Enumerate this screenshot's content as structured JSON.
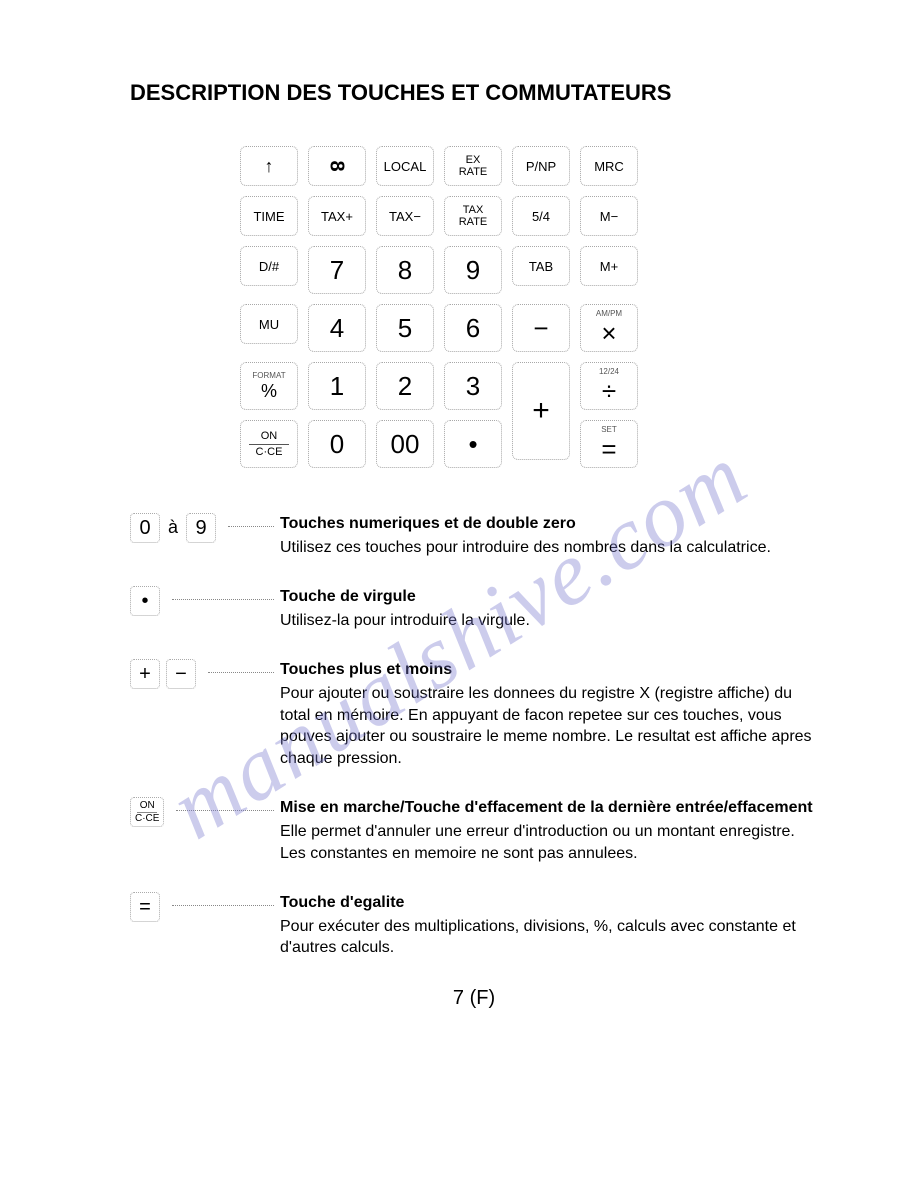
{
  "title": "DESCRIPTION DES TOUCHES ET COMMUTATEURS",
  "watermark": "manualshive.com",
  "page_number": "7 (F)",
  "keypad_rows": [
    [
      {
        "label": "↑",
        "cls": ""
      },
      {
        "label": "8",
        "cls": "",
        "rot": true
      },
      {
        "label": "LOCAL",
        "cls": "small"
      },
      {
        "top": "EX",
        "bot": "RATE",
        "cls": "xsmall",
        "stack": true
      },
      {
        "label": "P/NP",
        "cls": "small"
      },
      {
        "label": "MRC",
        "cls": "small"
      }
    ],
    [
      {
        "label": "TIME",
        "cls": "small"
      },
      {
        "label": "TAX+",
        "cls": "small"
      },
      {
        "label": "TAX−",
        "cls": "small"
      },
      {
        "top": "TAX",
        "bot": "RATE",
        "cls": "xsmall",
        "stack": true
      },
      {
        "label": "5/4",
        "cls": "small"
      },
      {
        "label": "M−",
        "cls": "small"
      }
    ],
    [
      {
        "label": "D/#",
        "cls": "small"
      },
      {
        "label": "7",
        "cls": "big"
      },
      {
        "label": "8",
        "cls": "big"
      },
      {
        "label": "9",
        "cls": "big"
      },
      {
        "label": "TAB",
        "cls": "small"
      },
      {
        "label": "M+",
        "cls": "small"
      }
    ],
    [
      {
        "label": "MU",
        "cls": "small"
      },
      {
        "label": "4",
        "cls": "big"
      },
      {
        "label": "5",
        "cls": "big"
      },
      {
        "label": "6",
        "cls": "big"
      },
      {
        "label": "−",
        "cls": "big"
      },
      {
        "sup": "AM/PM",
        "label": "×",
        "cls": "big"
      }
    ],
    [
      {
        "sup": "FORMAT",
        "label": "%",
        "cls": ""
      },
      {
        "label": "1",
        "cls": "big"
      },
      {
        "label": "2",
        "cls": "big"
      },
      {
        "label": "3",
        "cls": "big"
      },
      {
        "label": "+",
        "cls": "tall",
        "rowspan": 2
      },
      {
        "sup": "12/24",
        "label": "÷",
        "cls": "big"
      }
    ],
    [
      {
        "top": "ON",
        "bot": "C·CE",
        "cls": "xsmall",
        "stack": true,
        "hr": true
      },
      {
        "label": "0",
        "cls": "big"
      },
      {
        "label": "00",
        "cls": "big"
      },
      {
        "label": "•",
        "cls": "big"
      },
      null,
      {
        "sup": "SET",
        "label": "=",
        "cls": "big"
      }
    ]
  ],
  "descriptions": [
    {
      "keys": [
        {
          "label": "0"
        },
        {
          "sep": "à"
        },
        {
          "label": "9"
        }
      ],
      "title": "Touches numeriques et de double zero",
      "body": "Utilisez ces touches pour introduire des nombres dans la calculatrice."
    },
    {
      "keys": [
        {
          "label": "•"
        }
      ],
      "title": "Touche de virgule",
      "body": "Utilisez-la pour introduire la virgule."
    },
    {
      "keys": [
        {
          "label": "+"
        },
        {
          "label": "−"
        }
      ],
      "title": "Touches plus et  moins",
      "body": "Pour ajouter ou soustraire les donnees du registre X (registre affiche) du total en mémoire. En appuyant de facon repetee sur ces touches, vous pouves ajouter ou soustraire le meme nombre. Le resultat est affiche apres chaque pression."
    },
    {
      "keys": [
        {
          "top": "ON",
          "bot": "C·CE",
          "stack": true
        }
      ],
      "title": "Mise en marche/Touche d'effacement de la dernière entrée/effacement",
      "body": "Elle permet d'annuler une erreur d'introduction ou un montant enregistre. Les constantes en memoire ne sont pas annulees."
    },
    {
      "keys": [
        {
          "label": "="
        }
      ],
      "title": "Touche d'egalite",
      "body": "Pour exécuter des multiplications, divisions, %, calculs avec constante et d'autres calculs."
    }
  ]
}
